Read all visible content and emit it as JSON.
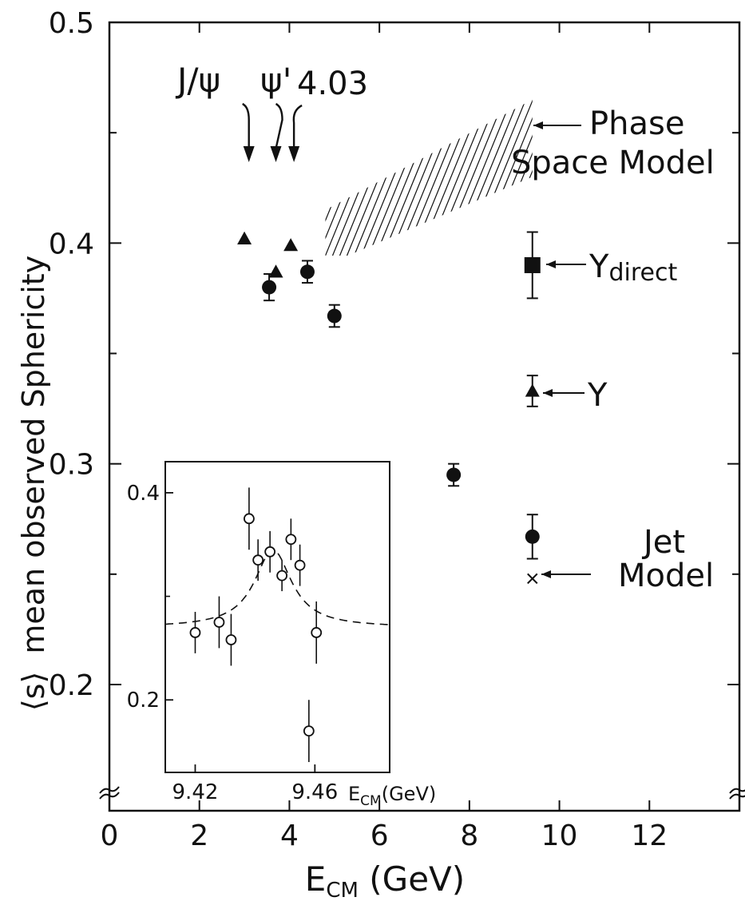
{
  "chart_data": [
    {
      "type": "scatter",
      "xlabel": "E_CM (GeV)",
      "xlabel_main": "E",
      "xlabel_sub": "CM",
      "xlabel_unit": " (GeV)",
      "ylabel_symbol": "⟨s⟩",
      "ylabel": "mean observed Sphericity",
      "xlim": [
        0,
        14
      ],
      "ylim": [
        0.15,
        0.5
      ],
      "y_axis_break": true,
      "xticks": [
        0,
        2,
        4,
        6,
        8,
        10,
        12
      ],
      "xtick_labels": [
        "0",
        "2",
        "4",
        "6",
        "8",
        "10",
        "12"
      ],
      "yticks": [
        0.2,
        0.3,
        0.4,
        0.5
      ],
      "ytick_labels": [
        "0.2",
        "0.3",
        "0.4",
        "0.5"
      ],
      "grid": false,
      "series": [
        {
          "marker": "filled-circle",
          "x": [
            3.55,
            4.4,
            5.0,
            7.65
          ],
          "y": [
            0.38,
            0.387,
            0.367,
            0.295
          ],
          "yerr": [
            0.006,
            0.005,
            0.005,
            0.005
          ]
        },
        {
          "marker": "filled-triangle",
          "x": [
            3.0,
            3.7,
            4.03
          ],
          "y": [
            0.402,
            0.387,
            0.399
          ]
        }
      ],
      "resonance_arrows": [
        {
          "label": "J/ψ",
          "x": 3.1
        },
        {
          "label": "ψ'",
          "x": 3.7
        },
        {
          "label": "4.03",
          "x": 4.03
        }
      ],
      "phase_space_band": {
        "label_line1": "Phase",
        "label_line2": "Space Model",
        "x": [
          4.8,
          9.4
        ],
        "y_low": [
          0.39,
          0.43
        ],
        "y_high": [
          0.415,
          0.465
        ]
      },
      "side_points": [
        {
          "marker": "filled-square",
          "x": 9.4,
          "y": 0.39,
          "yerr": 0.015,
          "label_main": "Υ",
          "label_sub": "direct"
        },
        {
          "marker": "filled-triangle",
          "x": 9.4,
          "y": 0.333,
          "yerr": 0.007,
          "label_main": "Υ",
          "label_sub": ""
        },
        {
          "marker": "filled-circle",
          "x": 9.4,
          "y": 0.267,
          "yerr": 0.01,
          "label_main": "Jet",
          "label_sub": ""
        },
        {
          "marker": "cross",
          "x": 9.4,
          "y": 0.248,
          "label_main": "Model",
          "label_sub": ""
        }
      ]
    },
    {
      "type": "scatter",
      "inset": true,
      "xlabel": "E_CM (GeV)",
      "xlabel_main": "E",
      "xlabel_sub": "CM",
      "xlabel_unit": "(GeV)",
      "xlim": [
        9.41,
        9.485
      ],
      "ylim": [
        0.13,
        0.43
      ],
      "xticks": [
        9.42,
        9.46
      ],
      "xtick_labels": [
        "9.42",
        "9.46"
      ],
      "yticks": [
        0.2,
        0.4
      ],
      "ytick_labels": [
        "0.2",
        "0.4"
      ],
      "series": [
        {
          "marker": "open-circle",
          "x": [
            9.42,
            9.428,
            9.432,
            9.438,
            9.441,
            9.445,
            9.449,
            9.452,
            9.455,
            9.458,
            9.4605
          ],
          "y": [
            0.265,
            0.275,
            0.258,
            0.375,
            0.335,
            0.343,
            0.32,
            0.355,
            0.33,
            0.17,
            0.265
          ],
          "yerr": [
            0.02,
            0.025,
            0.025,
            0.03,
            0.02,
            0.02,
            0.015,
            0.02,
            0.02,
            0.03,
            0.03
          ]
        }
      ],
      "fit_curve": {
        "style": "dashed",
        "baseline": 0.27,
        "peak": 0.345,
        "center": 9.446,
        "width": 0.0075
      }
    }
  ]
}
